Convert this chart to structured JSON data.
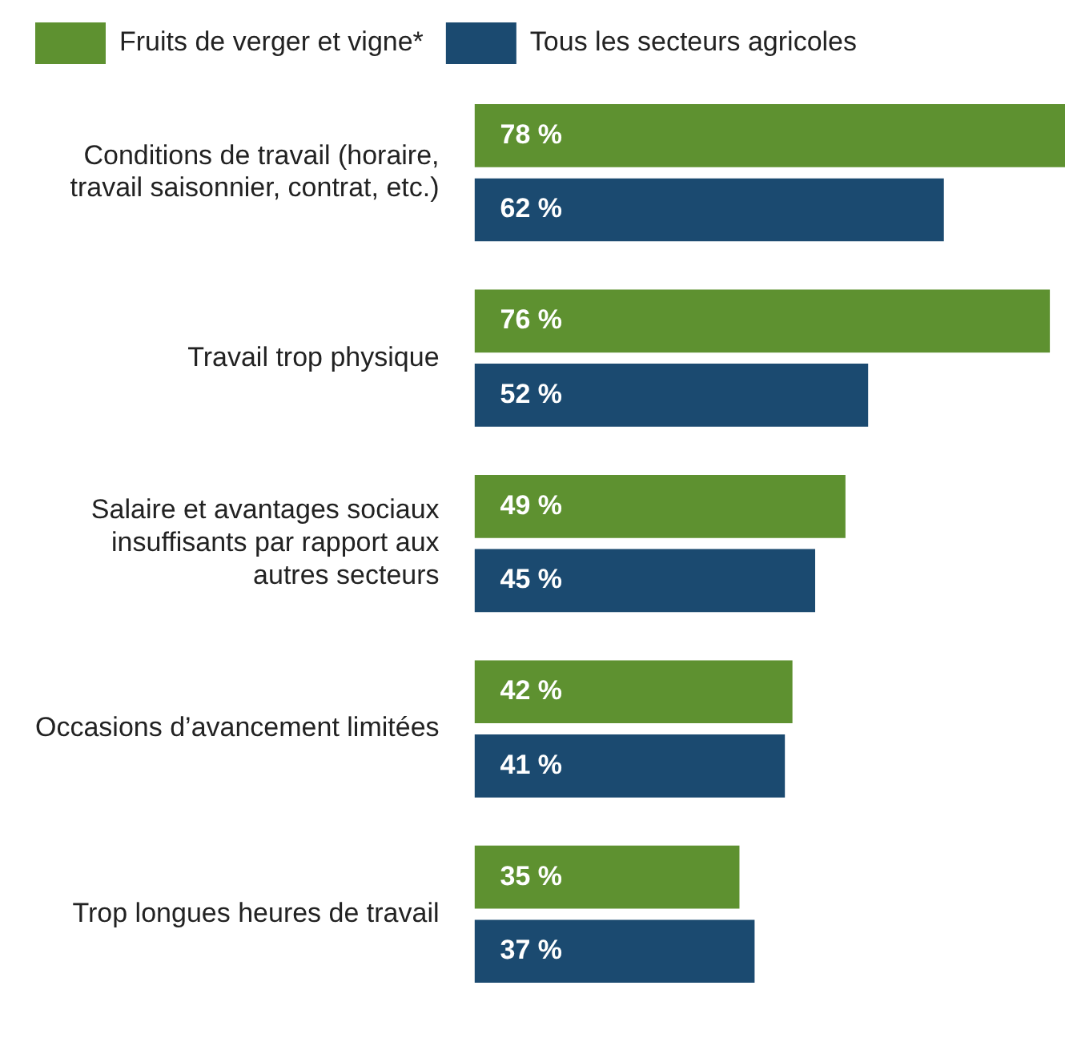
{
  "chart_data": {
    "type": "bar",
    "orientation": "horizontal",
    "legend": "top left",
    "categories": [
      "Conditions de travail (horaire, travail saisonnier, contrat, etc.)",
      "Travail trop physique",
      "Salaire et avantages sociaux insuffisants par rapport aux autres secteurs",
      "Occasions d’avancement limitées",
      "Trop longues heures de travail"
    ],
    "series": [
      {
        "name": "Fruits de verger et vigne*",
        "color": "#5e9130",
        "values": [
          78,
          76,
          49,
          42,
          35
        ],
        "value_labels": [
          "78 %",
          "76 %",
          "49 %",
          "42 %",
          "35 %"
        ]
      },
      {
        "name": "Tous les secteurs agricoles",
        "color": "#1b4a70",
        "values": [
          62,
          52,
          45,
          41,
          37
        ],
        "value_labels": [
          "62 %",
          "52 %",
          "45 %",
          "41 %",
          "37 %"
        ]
      }
    ]
  }
}
